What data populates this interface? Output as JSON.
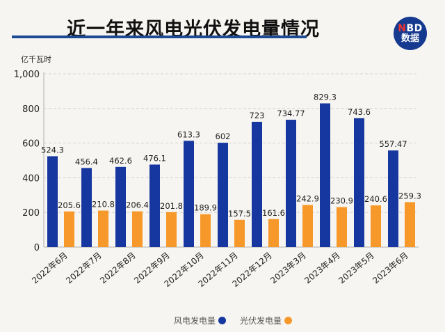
{
  "header": {
    "title": "近一年来风电光伏发电量情况",
    "logo_line1_accent": "N",
    "logo_line1_rest": "BD",
    "logo_line2": "数据"
  },
  "colors": {
    "wind": "#1737a0",
    "solar": "#f7992a",
    "rule": "#1d4a95"
  },
  "chart_data": {
    "type": "bar",
    "title": "近一年来风电光伏发电量情况",
    "ylabel": "亿千瓦时",
    "xlabel": "",
    "ylim": [
      0,
      1000
    ],
    "yticks": [
      0,
      200,
      400,
      600,
      800,
      1000
    ],
    "ytick_labels": [
      "0",
      "200",
      "400",
      "600",
      "800",
      "1,000"
    ],
    "grid": true,
    "legend_position": "bottom-right",
    "categories": [
      "2022年6月",
      "2022年7月",
      "2022年8月",
      "2022年9月",
      "2022年10月",
      "2022年11月",
      "2022年12月",
      "2023年3月",
      "2023年4月",
      "2023年5月",
      "2023年6月"
    ],
    "series": [
      {
        "name": "风电发电量",
        "values": [
          524.3,
          456.4,
          462.6,
          476.1,
          613.3,
          602,
          723,
          734.77,
          829.3,
          743.6,
          557.47
        ],
        "labels": [
          "524.3",
          "456.4",
          "462.6",
          "476.1",
          "613.3",
          "602",
          "723",
          "734.77",
          "829.3",
          "743.6",
          "557.47"
        ]
      },
      {
        "name": "光伏发电量",
        "values": [
          205.6,
          210.8,
          206.4,
          201.8,
          189.9,
          157.5,
          161.6,
          242.9,
          230.9,
          240.6,
          259.3
        ],
        "labels": [
          "205.6",
          "210.8",
          "206.4",
          "201.8",
          "189.9",
          "157.5",
          "161.6",
          "242.9",
          "230.9",
          "240.6",
          "259.3"
        ]
      }
    ]
  }
}
